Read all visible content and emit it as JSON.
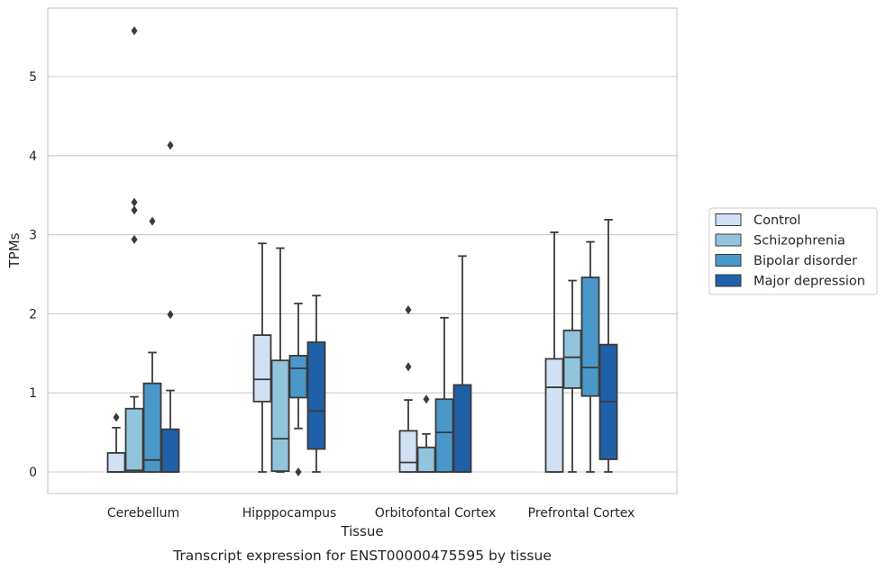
{
  "caption": "Transcript expression for ENST00000475595 by tissue",
  "chart_data": {
    "type": "box",
    "xlabel": "Tissue",
    "ylabel": "TPMs",
    "ylim": [
      -0.28,
      5.88
    ],
    "yticks": [
      0,
      1,
      2,
      3,
      4,
      5
    ],
    "grid": true,
    "legend_position": "right",
    "categories": [
      "Cerebellum",
      "Hipppocampus",
      "Orbitofontal Cortex",
      "Prefrontal Cortex"
    ],
    "series": [
      {
        "name": "Control",
        "color": "#cfe1f2",
        "boxes": [
          {
            "whislo": 0,
            "q1": 0,
            "med": 0.0,
            "q3": 0.24,
            "whishi": 0.56,
            "fliers": [
              0.69
            ]
          },
          {
            "whislo": 0,
            "q1": 0.89,
            "med": 1.17,
            "q3": 1.73,
            "whishi": 2.89,
            "fliers": []
          },
          {
            "whislo": 0,
            "q1": 0,
            "med": 0.12,
            "q3": 0.52,
            "whishi": 0.91,
            "fliers": [
              1.33,
              2.05
            ]
          },
          {
            "whislo": 0,
            "q1": 0,
            "med": 1.07,
            "q3": 1.43,
            "whishi": 3.03,
            "fliers": []
          }
        ]
      },
      {
        "name": "Schizophrenia",
        "color": "#93c4de",
        "boxes": [
          {
            "whislo": 0,
            "q1": 0,
            "med": 0.02,
            "q3": 0.8,
            "whishi": 0.95,
            "fliers": [
              2.94,
              3.31,
              3.41,
              5.58
            ]
          },
          {
            "whislo": 0,
            "q1": 0.01,
            "med": 0.42,
            "q3": 1.41,
            "whishi": 2.83,
            "fliers": []
          },
          {
            "whislo": 0,
            "q1": 0,
            "med": 0.0,
            "q3": 0.31,
            "whishi": 0.48,
            "fliers": [
              0.92
            ]
          },
          {
            "whislo": 0,
            "q1": 1.06,
            "med": 1.45,
            "q3": 1.79,
            "whishi": 2.42,
            "fliers": []
          }
        ]
      },
      {
        "name": "Bipolar disorder",
        "color": "#4a98c9",
        "boxes": [
          {
            "whislo": 0,
            "q1": 0,
            "med": 0.15,
            "q3": 1.12,
            "whishi": 1.51,
            "fliers": [
              3.17
            ]
          },
          {
            "whislo": 0.55,
            "q1": 0.94,
            "med": 1.31,
            "q3": 1.47,
            "whishi": 2.13,
            "fliers": [
              0.0
            ]
          },
          {
            "whislo": 0,
            "q1": 0,
            "med": 0.5,
            "q3": 0.92,
            "whishi": 1.95,
            "fliers": []
          },
          {
            "whislo": 0,
            "q1": 0.96,
            "med": 1.32,
            "q3": 2.46,
            "whishi": 2.91,
            "fliers": []
          }
        ]
      },
      {
        "name": "Major depression",
        "color": "#2060a8",
        "boxes": [
          {
            "whislo": 0,
            "q1": 0,
            "med": 0.0,
            "q3": 0.54,
            "whishi": 1.03,
            "fliers": [
              1.99,
              4.13
            ]
          },
          {
            "whislo": 0,
            "q1": 0.29,
            "med": 0.77,
            "q3": 1.64,
            "whishi": 2.23,
            "fliers": []
          },
          {
            "whislo": 0,
            "q1": 0,
            "med": 0.0,
            "q3": 1.1,
            "whishi": 2.73,
            "fliers": []
          },
          {
            "whislo": 0,
            "q1": 0.16,
            "med": 0.89,
            "q3": 1.61,
            "whishi": 3.19,
            "fliers": []
          }
        ]
      }
    ]
  }
}
